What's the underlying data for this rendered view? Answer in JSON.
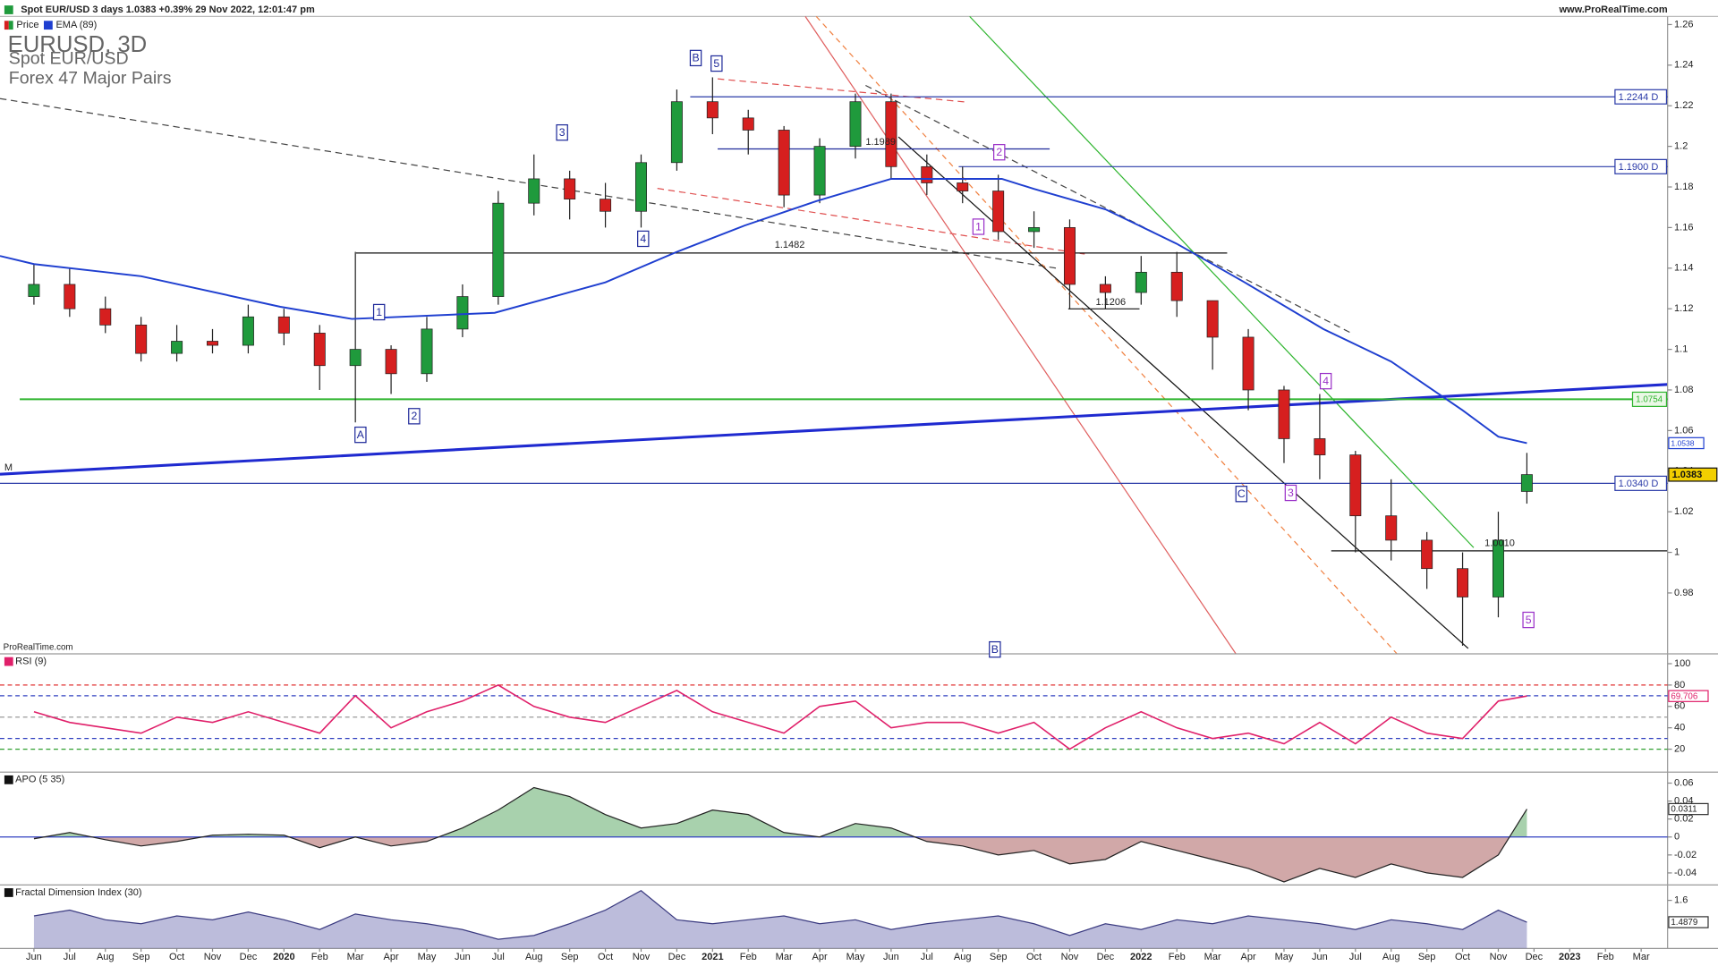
{
  "header": {
    "info": "Spot EUR/USD 3 days 1.0383 +0.39% 29 Nov 2022, 12:01:47 pm",
    "site": "www.ProRealTime.com",
    "watermark": "ProRealTime.com"
  },
  "chart_data": [
    {
      "type": "candlestick",
      "title": "EURUSD, 3D",
      "subtitle": "Spot EUR/USD",
      "market": "Forex 47 Major Pairs",
      "x": [
        0,
        1,
        2,
        3,
        4,
        5,
        6,
        7,
        8,
        9,
        10,
        11,
        12,
        13,
        14,
        15,
        16,
        17,
        18,
        19,
        20,
        21,
        22,
        23,
        24,
        25,
        26,
        27,
        28,
        29,
        30,
        31,
        32,
        33,
        34,
        35,
        36,
        37,
        38,
        39,
        40,
        41,
        41.8
      ],
      "series": [
        {
          "name": "Price",
          "up_color": "#1f9a3c",
          "down_color": "#d61f1f",
          "open": [
            1.126,
            1.132,
            1.12,
            1.112,
            1.098,
            1.104,
            1.102,
            1.116,
            1.108,
            1.092,
            1.1,
            1.088,
            1.11,
            1.126,
            1.172,
            1.184,
            1.174,
            1.168,
            1.192,
            1.222,
            1.214,
            1.208,
            1.176,
            1.2,
            1.222,
            1.19,
            1.182,
            1.178,
            1.158,
            1.16,
            1.132,
            1.128,
            1.138,
            1.124,
            1.106,
            1.08,
            1.056,
            1.048,
            1.018,
            1.006,
            0.992,
            0.978,
            1.03
          ],
          "high": [
            1.142,
            1.14,
            1.126,
            1.116,
            1.112,
            1.11,
            1.122,
            1.12,
            1.112,
            1.148,
            1.102,
            1.116,
            1.132,
            1.178,
            1.196,
            1.188,
            1.182,
            1.196,
            1.228,
            1.234,
            1.218,
            1.21,
            1.204,
            1.226,
            1.226,
            1.196,
            1.19,
            1.186,
            1.168,
            1.164,
            1.136,
            1.146,
            1.148,
            1.124,
            1.11,
            1.082,
            1.078,
            1.05,
            1.036,
            1.01,
            1.0,
            1.02,
            1.049
          ],
          "low": [
            1.122,
            1.116,
            1.108,
            1.094,
            1.094,
            1.098,
            1.098,
            1.102,
            1.08,
            1.064,
            1.078,
            1.084,
            1.106,
            1.122,
            1.166,
            1.164,
            1.16,
            1.16,
            1.188,
            1.206,
            1.196,
            1.17,
            1.172,
            1.194,
            1.184,
            1.176,
            1.172,
            1.154,
            1.15,
            1.12,
            1.12,
            1.122,
            1.116,
            1.09,
            1.07,
            1.044,
            1.036,
            1.0,
            0.996,
            0.982,
            0.954,
            0.968,
            1.024
          ],
          "close": [
            1.132,
            1.12,
            1.112,
            1.098,
            1.104,
            1.102,
            1.116,
            1.108,
            1.092,
            1.1,
            1.088,
            1.11,
            1.126,
            1.172,
            1.184,
            1.174,
            1.168,
            1.192,
            1.222,
            1.214,
            1.208,
            1.176,
            1.2,
            1.222,
            1.19,
            1.182,
            1.178,
            1.158,
            1.16,
            1.132,
            1.128,
            1.138,
            1.124,
            1.106,
            1.08,
            1.056,
            1.048,
            1.018,
            1.006,
            0.992,
            0.978,
            1.006,
            1.0383
          ]
        },
        {
          "name": "EMA (89)",
          "color": "#1f3fd0",
          "x": [
            -0.95,
            0,
            3,
            6.9,
            8.9,
            12.9,
            16,
            18,
            19.9,
            21.9,
            24,
            27.1,
            28,
            30,
            32,
            33.9,
            36.1,
            38,
            40,
            41,
            41.8
          ],
          "values": [
            1.146,
            1.142,
            1.136,
            1.121,
            1.115,
            1.118,
            1.133,
            1.148,
            1.161,
            1.173,
            1.184,
            1.184,
            1.179,
            1.169,
            1.152,
            1.133,
            1.11,
            1.094,
            1.07,
            1.057,
            1.0538
          ]
        }
      ],
      "xlim": [
        -0.95,
        45.74
      ],
      "xticks": [
        {
          "value": 0,
          "label": "Jun"
        },
        {
          "value": 1,
          "label": "Jul"
        },
        {
          "value": 2,
          "label": "Aug"
        },
        {
          "value": 3,
          "label": "Sep"
        },
        {
          "value": 4,
          "label": "Oct"
        },
        {
          "value": 5,
          "label": "Nov"
        },
        {
          "value": 6,
          "label": "Dec"
        },
        {
          "value": 7,
          "label": "2020"
        },
        {
          "value": 8,
          "label": "Feb"
        },
        {
          "value": 9,
          "label": "Mar"
        },
        {
          "value": 10,
          "label": "Apr"
        },
        {
          "value": 11,
          "label": "May"
        },
        {
          "value": 12,
          "label": "Jun"
        },
        {
          "value": 13,
          "label": "Jul"
        },
        {
          "value": 14,
          "label": "Aug"
        },
        {
          "value": 15,
          "label": "Sep"
        },
        {
          "value": 16,
          "label": "Oct"
        },
        {
          "value": 17,
          "label": "Nov"
        },
        {
          "value": 18,
          "label": "Dec"
        },
        {
          "value": 19,
          "label": "2021"
        },
        {
          "value": 20,
          "label": "Feb"
        },
        {
          "value": 21,
          "label": "Mar"
        },
        {
          "value": 22,
          "label": "Apr"
        },
        {
          "value": 23,
          "label": "May"
        },
        {
          "value": 24,
          "label": "Jun"
        },
        {
          "value": 25,
          "label": "Jul"
        },
        {
          "value": 26,
          "label": "Aug"
        },
        {
          "value": 27,
          "label": "Sep"
        },
        {
          "value": 28,
          "label": "Oct"
        },
        {
          "value": 29,
          "label": "Nov"
        },
        {
          "value": 30,
          "label": "Dec"
        },
        {
          "value": 31,
          "label": "2022"
        },
        {
          "value": 32,
          "label": "Feb"
        },
        {
          "value": 33,
          "label": "Mar"
        },
        {
          "value": 34,
          "label": "Apr"
        },
        {
          "value": 35,
          "label": "May"
        },
        {
          "value": 36,
          "label": "Jun"
        },
        {
          "value": 37,
          "label": "Jul"
        },
        {
          "value": 38,
          "label": "Aug"
        },
        {
          "value": 39,
          "label": "Sep"
        },
        {
          "value": 40,
          "label": "Oct"
        },
        {
          "value": 41,
          "label": "Nov"
        },
        {
          "value": 42,
          "label": "Dec"
        },
        {
          "value": 43,
          "label": "2023"
        },
        {
          "value": 44,
          "label": "Feb"
        },
        {
          "value": 45,
          "label": "Mar"
        }
      ],
      "ylim": [
        0.95,
        1.264
      ],
      "yticks": [
        1.26,
        1.24,
        1.22,
        1.2,
        1.18,
        1.16,
        1.14,
        1.12,
        1.1,
        1.08,
        1.06,
        1.04,
        1.02,
        1,
        0.98
      ],
      "levels": [
        {
          "value": 1.2244,
          "label": "1.2244 D",
          "color": "#2a3aa8"
        },
        {
          "value": 1.19,
          "label": "1.1900 D",
          "color": "#2a3aa8"
        },
        {
          "value": 1.0754,
          "color": "#2fb52f"
        },
        {
          "value": 1.034,
          "label": "1.0340 D",
          "color": "#2a3aa8"
        }
      ],
      "annotations": [
        {
          "text": "B",
          "color": "#1f2a9a"
        },
        {
          "text": "5",
          "color": "#1f2a9a"
        },
        {
          "text": "3",
          "color": "#1f2a9a"
        },
        {
          "text": "4",
          "color": "#1f2a9a"
        },
        {
          "text": "1",
          "color": "#1f2a9a"
        },
        {
          "text": "2",
          "color": "#1f2a9a"
        },
        {
          "text": "A",
          "color": "#1f2a9a"
        },
        {
          "text": "C",
          "color": "#1f2a9a"
        },
        {
          "text": "2",
          "color": "#9a30c8"
        },
        {
          "text": "1",
          "color": "#9a30c8"
        },
        {
          "text": "4",
          "color": "#9a30c8"
        },
        {
          "text": "3",
          "color": "#9a30c8"
        },
        {
          "text": "5",
          "color": "#9a30c8"
        },
        {
          "text": "B",
          "color": "#1f2a9a"
        }
      ],
      "line_labels": [
        "1.1989",
        "1.1482",
        "1.1206",
        "1.0010",
        "M"
      ]
    },
    {
      "type": "line",
      "title": "RSI (9)",
      "color": "#e0206a",
      "values": [
        55,
        45,
        40,
        35,
        50,
        45,
        55,
        45,
        35,
        70,
        40,
        55,
        65,
        80,
        60,
        50,
        45,
        60,
        75,
        55,
        45,
        35,
        60,
        65,
        40,
        45,
        45,
        35,
        45,
        20,
        40,
        55,
        40,
        30,
        35,
        25,
        45,
        25,
        50,
        35,
        30,
        65,
        69.706
      ],
      "ylim": [
        -1.5,
        109.2
      ],
      "yticks": [
        100,
        80,
        60,
        40,
        20
      ],
      "levels": [
        {
          "value": 80,
          "color": "#e03030"
        },
        {
          "value": 70,
          "color": "#3040c0"
        },
        {
          "value": 50,
          "color": "#999999"
        },
        {
          "value": 30,
          "color": "#3040c0"
        },
        {
          "value": 20,
          "color": "#30a030"
        }
      ]
    },
    {
      "type": "area",
      "title": "APO (5 35)",
      "color": "#222222",
      "up_color": "#3d9a4a",
      "down_color": "#9a3d3d",
      "values": [
        -0.002,
        0.005,
        -0.003,
        -0.01,
        -0.005,
        0.002,
        0.003,
        0.002,
        -0.012,
        0,
        -0.01,
        -0.005,
        0.01,
        0.03,
        0.055,
        0.045,
        0.025,
        0.01,
        0.015,
        0.03,
        0.025,
        0.005,
        0,
        0.015,
        0.01,
        -0.005,
        -0.01,
        -0.02,
        -0.015,
        -0.03,
        -0.025,
        -0.005,
        -0.015,
        -0.025,
        -0.035,
        -0.05,
        -0.035,
        -0.045,
        -0.03,
        -0.04,
        -0.045,
        -0.02,
        0.0311
      ],
      "ylim": [
        -0.0534,
        0.0722
      ],
      "yticks": [
        0.06,
        0.04,
        0.02,
        0,
        -0.02,
        -0.04
      ]
    },
    {
      "type": "area",
      "title": "Fractal Dimension Index (30)",
      "color": "#3a3a80",
      "up_color": "#6a6ab0",
      "values": [
        1.52,
        1.55,
        1.5,
        1.48,
        1.52,
        1.5,
        1.54,
        1.5,
        1.45,
        1.53,
        1.5,
        1.48,
        1.45,
        1.4,
        1.42,
        1.48,
        1.55,
        1.65,
        1.5,
        1.48,
        1.5,
        1.52,
        1.48,
        1.5,
        1.45,
        1.48,
        1.5,
        1.52,
        1.48,
        1.42,
        1.48,
        1.45,
        1.5,
        1.48,
        1.52,
        1.5,
        1.48,
        1.45,
        1.5,
        1.48,
        1.45,
        1.55,
        1.4879
      ],
      "ylim": [
        1.353,
        1.679
      ],
      "yticks": [
        1.6
      ]
    }
  ]
}
